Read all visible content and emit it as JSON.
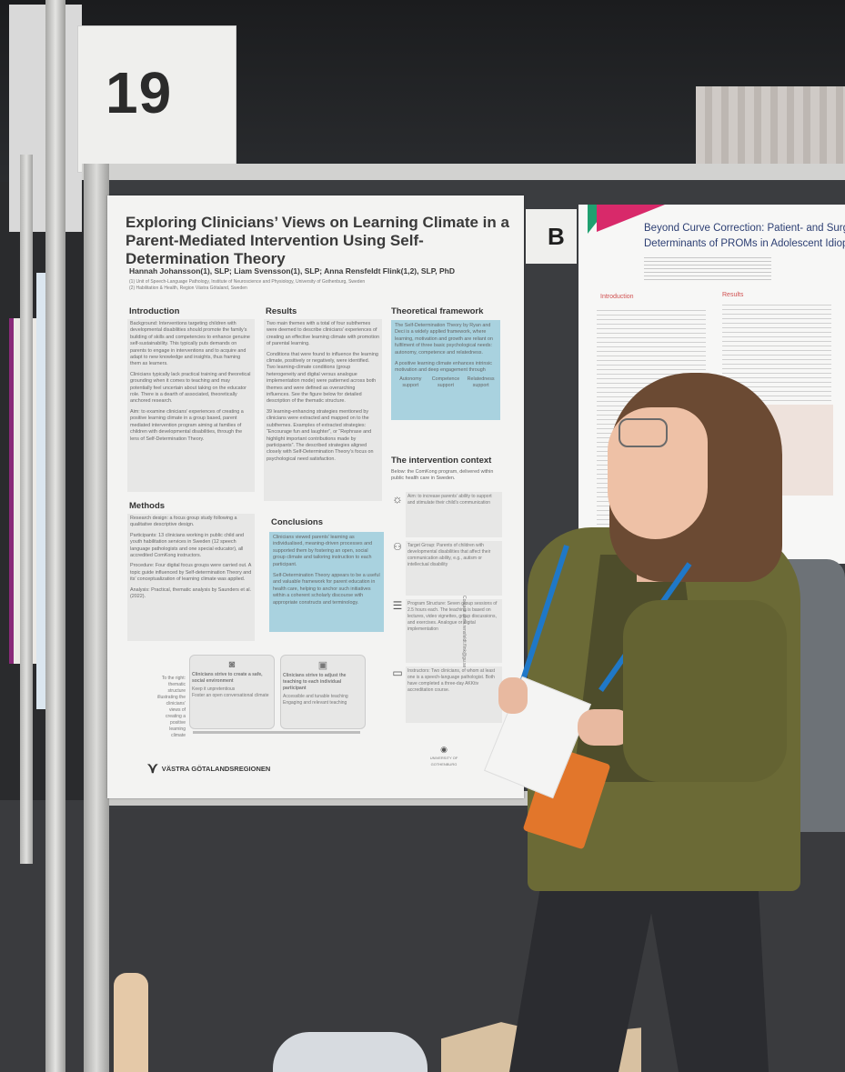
{
  "booth": {
    "number": "19",
    "board_letter": "B"
  },
  "poster": {
    "title": "Exploring Clinicians’ Views on Learning Climate in a Parent-Mediated Intervention Using Self-Determination Theory",
    "title_lines": [
      "Exploring Clinicians’ Views on Learning Climate in a",
      "Parent-Mediated Intervention Using Self-",
      "Determination Theory"
    ],
    "authors": "Hannah Johansson(1), SLP; Liam Svensson(1), SLP; Anna Rensfeldt Flink(1,2), SLP, PhD",
    "affiliations": [
      "(1) Unit of Speech-Language Pathology, Institute of Neuroscience and Physiology, University of Gothenburg, Sweden",
      "(2) Habilitation & Health, Region Västra Götaland, Sweden"
    ],
    "introduction": {
      "heading": "Introduction",
      "p1": "Background: Interventions targeting children with developmental disabilities should promote the family’s building of skills and competencies to enhance genuine self-sustainability. This typically puts demands on parents to engage in interventions and to acquire and adapt to new knowledge and insights, thus framing them as learners.",
      "p2": "Clinicians typically lack practical training and theoretical grounding when it comes to teaching and may potentially feel uncertain about taking on the educator role. There is a dearth of associated, theoretically anchored research.",
      "p3": "Aim: to examine clinicians’ experiences of creating a positive learning climate in a group based, parent mediated intervention program aiming at families of children with developmental disabilities, through the lens of Self-Determination Theory."
    },
    "methods": {
      "heading": "Methods",
      "p1": "Research design: a focus group study following a qualitative descriptive design.",
      "p2": "Participants: 13 clinicians working in public child and youth habilitation services in Sweden (12 speech language pathologists and one special educator), all accredited ComKong instructors.",
      "p3": "Procedure: Four digital focus groups were carried out. A topic guide influenced by Self-determination Theory and its’ conceptualization of learning climate was applied.",
      "p4": "Analysis: Practical, thematic analysis by Saunders et al. (2022)."
    },
    "results": {
      "heading": "Results",
      "p1": "Two main themes with a total of four subthemes were deemed to describe clinicians’ experiences of creating an effective learning climate with promotion of parental learning.",
      "p2": "Conditions that were found to influence the learning climate, positively or negatively, were identified. Two learning-climate conditions (group heterogeneity and digital versus analogue implementation mode) were patterned across both themes and were defined as overarching influences. See the figure below for detailed description of the thematic structure.",
      "p3": "39 learning-enhancing strategies mentioned by clinicians were extracted and mapped on to the subthemes. Examples of extracted strategies: “Encourage fun and laughter”, or “Rephrase and highlight important contributions made by participants”. The described strategies aligned closely with Self-Determination Theory’s focus on psychological need satisfaction."
    },
    "conclusions": {
      "heading": "Conclusions",
      "p1": "Clinicians viewed parents’ learning as individualised, meaning-driven processes and supported them by fostering an open, social group climate and tailoring instruction to each participant.",
      "p2": "Self-Determination Theory appears to be a useful and valuable framework for parent education in health care, helping to anchor such initiatives within a coherent scholarly discourse with appropriate constructs and terminology."
    },
    "theory": {
      "heading": "Theoretical framework",
      "p1": "The Self-Determination Theory by Ryan and Deci is a widely applied framework, where learning, motivation and growth are reliant on fulfilment of three basic psychological needs: autonomy, competence and relatedness.",
      "p2": "A positive learning climate enhances intrinsic motivation and deep engagement through",
      "needs": [
        "Autonomy support",
        "Competence support",
        "Relatedness support"
      ]
    },
    "context": {
      "heading": "The intervention context",
      "intro": "Below: the ComKong program, delivered within public health care in Sweden.",
      "items": [
        {
          "icon": "lightbulb-icon",
          "text": "Aim: to increase parents’ ability to support and stimulate their child’s communication"
        },
        {
          "icon": "family-icon",
          "text": "Target Group: Parents of children with developmental disabilities that affect their communication ability, e.g., autism or intellectual disability"
        },
        {
          "icon": "checklist-icon",
          "text": "Program Structure: Seven group sessions of 2.5 hours each. The teaching is based on lectures, video vignettes, group discussions, and exercises. Analogue or digital implementation"
        },
        {
          "icon": "presenter-icon",
          "text": "Instructors: Two clinicians, of whom at least one is a speech-language pathologist. Both have completed a three-day AKKtiv accreditation course."
        }
      ],
      "side_contact": "Contact: anna.rensfeldt.flink@gu.se"
    },
    "figure": {
      "side_label": "To the right: thematic structure illustrating the clinicians’ views of creating a positive learning climate",
      "box1_title": "Clinicians strive to create a safe, social environment",
      "box1_items": [
        "Keep it unpretentious",
        "Foster an open conversational climate"
      ],
      "box2_title": "Clinicians strive to adjust the teaching to each individual participant",
      "box2_items": [
        "Accessible and tunable teaching",
        "Engaging and relevant teaching"
      ]
    },
    "logos": {
      "region": "VÄSTRA GÖTALANDSREGIONEN",
      "university": "UNIVERSITY OF GOTHENBURG"
    }
  },
  "right_poster": {
    "title_lines": [
      "Beyond Curve Correction: Patient- and Surg",
      "Determinants of PROMs in Adolescent Idiop"
    ],
    "introduction_heading": "Introduction",
    "results_heading": "Results"
  },
  "colors": {
    "poster_bg": "#f3f3f2",
    "section_blue": "#a9d2df",
    "section_grey": "#e7e7e6",
    "jacket_green": "#6b6a36",
    "lanyard_blue": "#1f78c8",
    "badge_orange": "#e2762b"
  }
}
